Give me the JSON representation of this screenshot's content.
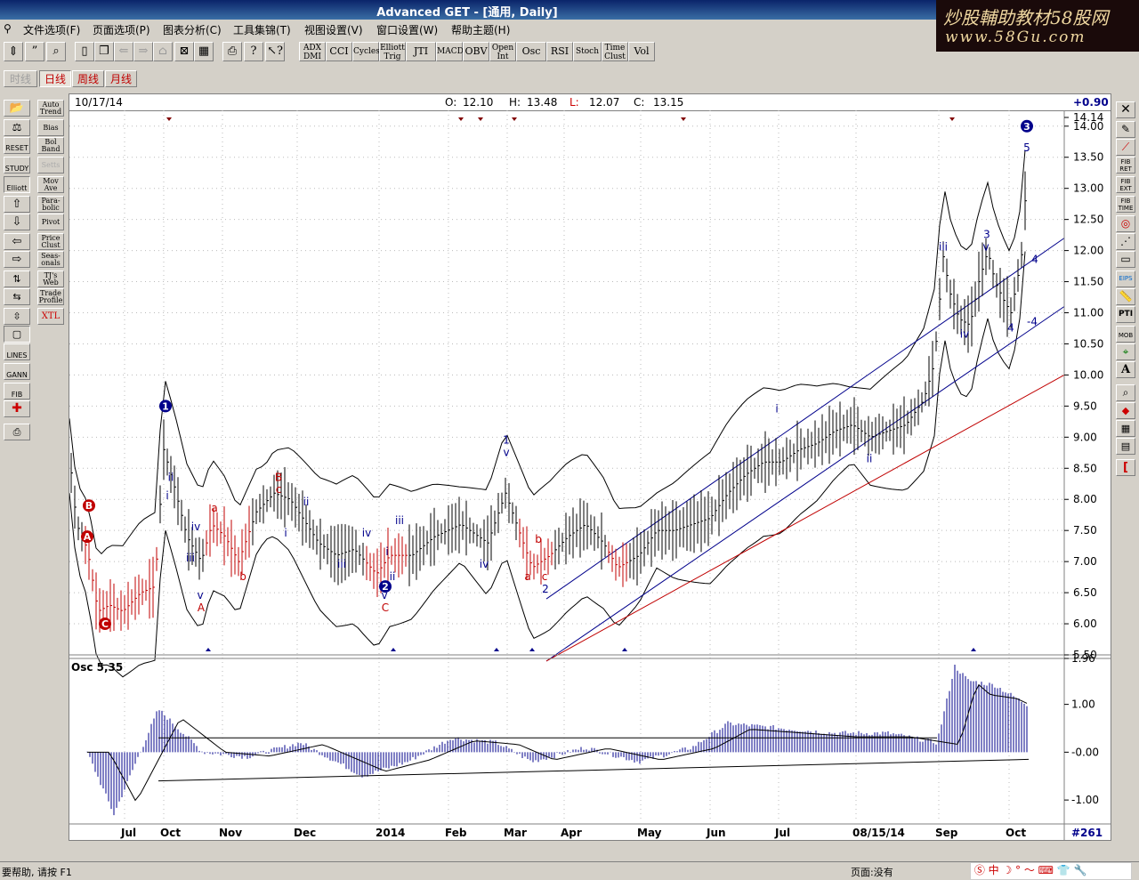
{
  "window": {
    "title": "Advanced GET - [通用, Daily]",
    "watermark_line1": "炒股輔助教材58股网",
    "watermark_line2": "www.58Gu.com"
  },
  "menu": [
    "文件选项(F)",
    "页面选项(P)",
    "图表分析(C)",
    "工具集锦(T)",
    "视图设置(V)",
    "窗口设置(W)",
    "帮助主题(H)"
  ],
  "toolbar": {
    "study_buttons": [
      "ADX DMI",
      "CCI",
      "Cycles",
      "Elliott Trig",
      "JTI",
      "MACD",
      "OBV",
      "Open Int",
      "Osc",
      "RSI",
      "Stoch",
      "Time Clust",
      "Vol"
    ]
  },
  "period_tabs": [
    "时线",
    "日线",
    "周线",
    "月线"
  ],
  "left_tools": {
    "col2": [
      "Auto Trend",
      "Bias",
      "Bol Band",
      "Setts",
      "Mov Ave",
      "Para- bolic",
      "Pivot",
      "Price Clust",
      "Seas- onals",
      "TJ's Web",
      "Trade Profile",
      "XTL"
    ],
    "col1": [
      "RESET",
      "STUDY",
      "Elliott",
      "LINES",
      "GANN",
      "FIB"
    ]
  },
  "right_tools": [
    "FIB RET",
    "FIB EXT",
    "FIB TIME",
    "PTI",
    "MOB",
    "A",
    "EIPS"
  ],
  "chart": {
    "date": "10/17/14",
    "open_label": "O:",
    "open": "12.10",
    "high_label": "H:",
    "high": "13.48",
    "low_label": "L:",
    "low": "12.07",
    "close_label": "C:",
    "close": "13.15",
    "change": "+0.90",
    "price_axis": [
      "14.14",
      "14.00",
      "13.50",
      "13.00",
      "12.50",
      "12.00",
      "11.50",
      "11.00",
      "10.50",
      "10.00",
      "9.50",
      "9.00",
      "8.50",
      "8.00",
      "7.50",
      "7.00",
      "6.50",
      "6.00",
      "5.50"
    ],
    "osc_label": "Osc 5,35",
    "osc_axis": [
      "1.96",
      "1.00",
      "-0.00",
      "-1.00"
    ],
    "months": [
      "Jul",
      "Oct",
      "Nov",
      "Dec",
      "2014",
      "Feb",
      "Mar",
      "Apr",
      "May",
      "Jun",
      "Jul",
      "08/15/14",
      "Sep",
      "Oct"
    ],
    "bar_count": "#261",
    "wave_labels": [
      "1",
      "2",
      "3",
      "i",
      "ii",
      "iii",
      "iv",
      "v",
      "A",
      "B",
      "C",
      "a",
      "b",
      "c",
      "3",
      "4",
      "5"
    ]
  },
  "status": {
    "help": "要帮助, 请按 F1",
    "page": "页面:没有"
  }
}
